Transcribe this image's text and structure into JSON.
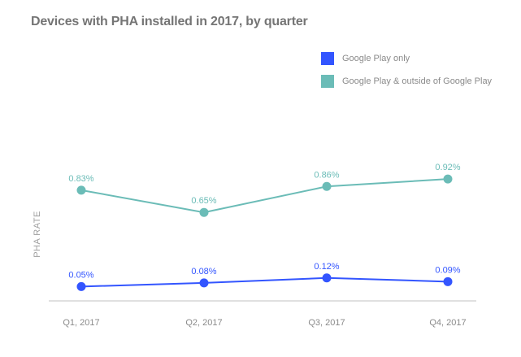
{
  "chart_data": {
    "type": "line",
    "title": "Devices with PHA installed in 2017, by quarter",
    "xlabel": "",
    "ylabel": "PHA RATE",
    "categories": [
      "Q1, 2017",
      "Q2, 2017",
      "Q3, 2017",
      "Q4, 2017"
    ],
    "series": [
      {
        "name": "Google Play only",
        "color": "#3355ff",
        "values": [
          0.05,
          0.08,
          0.12,
          0.09
        ],
        "labels": [
          "0.05%",
          "0.08%",
          "0.12%",
          "0.09%"
        ]
      },
      {
        "name": "Google Play & outside of Google Play",
        "color": "#6bbcb7",
        "values": [
          0.83,
          0.65,
          0.86,
          0.92
        ],
        "labels": [
          "0.83%",
          "0.65%",
          "0.86%",
          "0.92%"
        ]
      }
    ],
    "grid": false,
    "legend": "top-right"
  }
}
